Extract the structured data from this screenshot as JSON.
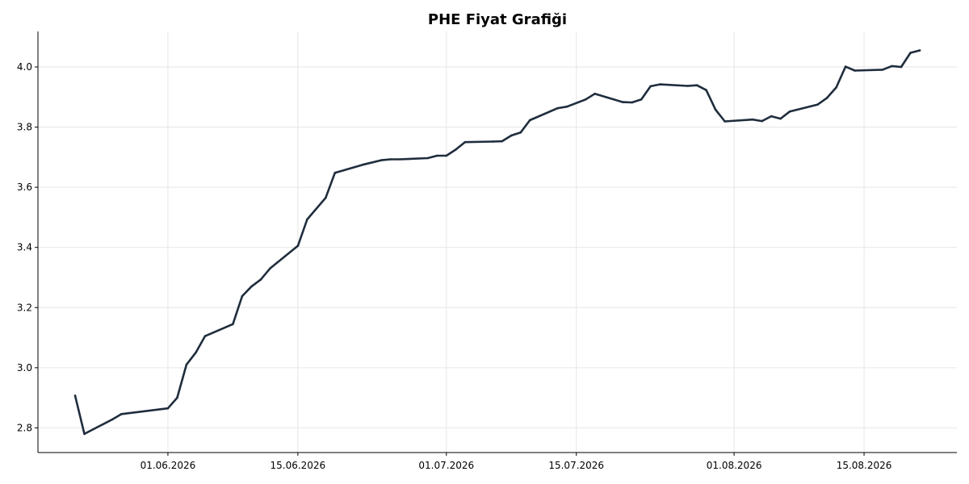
{
  "chart_data": {
    "type": "line",
    "title": "PHE Fiyat Grafiği",
    "xlabel": "",
    "ylabel": "",
    "x_ticks": [
      {
        "date": "2026-06-01",
        "label": "01.06.2026"
      },
      {
        "date": "2026-06-15",
        "label": "15.06.2026"
      },
      {
        "date": "2026-07-01",
        "label": "01.07.2026"
      },
      {
        "date": "2026-07-15",
        "label": "15.07.2026"
      },
      {
        "date": "2026-08-01",
        "label": "01.08.2026"
      },
      {
        "date": "2026-08-15",
        "label": "15.08.2026"
      }
    ],
    "y_ticks": [
      {
        "value": 2.8,
        "label": "2.8"
      },
      {
        "value": 3.0,
        "label": "3.0"
      },
      {
        "value": 3.2,
        "label": "3.2"
      },
      {
        "value": 3.4,
        "label": "3.4"
      },
      {
        "value": 3.6,
        "label": "3.6"
      },
      {
        "value": 3.8,
        "label": "3.8"
      },
      {
        "value": 4.0,
        "label": "4.0"
      }
    ],
    "xlim": [
      "2026-05-18",
      "2026-08-25"
    ],
    "ylim": [
      2.718,
      4.118
    ],
    "grid": true,
    "legend": "none",
    "color": "#1f2d3d",
    "series": [
      {
        "x": [
          "2026-05-22",
          "2026-05-23",
          "2026-05-26",
          "2026-05-27",
          "2026-06-01",
          "2026-06-02",
          "2026-06-03",
          "2026-06-04",
          "2026-06-05",
          "2026-06-08",
          "2026-06-09",
          "2026-06-10",
          "2026-06-11",
          "2026-06-12",
          "2026-06-15",
          "2026-06-16",
          "2026-06-18",
          "2026-06-19",
          "2026-06-22",
          "2026-06-24",
          "2026-06-25",
          "2026-06-26",
          "2026-06-29",
          "2026-06-30",
          "2026-07-01",
          "2026-07-02",
          "2026-07-03",
          "2026-07-06",
          "2026-07-07",
          "2026-07-08",
          "2026-07-09",
          "2026-07-10",
          "2026-07-13",
          "2026-07-14",
          "2026-07-16",
          "2026-07-17",
          "2026-07-20",
          "2026-07-21",
          "2026-07-22",
          "2026-07-23",
          "2026-07-24",
          "2026-07-27",
          "2026-07-28",
          "2026-07-29",
          "2026-07-30",
          "2026-07-31",
          "2026-08-03",
          "2026-08-04",
          "2026-08-05",
          "2026-08-06",
          "2026-08-07",
          "2026-08-10",
          "2026-08-11",
          "2026-08-12",
          "2026-08-13",
          "2026-08-14",
          "2026-08-17",
          "2026-08-18",
          "2026-08-19",
          "2026-08-20",
          "2026-08-21"
        ],
        "values": [
          2.907,
          2.78,
          2.828,
          2.846,
          2.865,
          2.9,
          3.01,
          3.05,
          3.105,
          3.145,
          3.238,
          3.27,
          3.293,
          3.33,
          3.405,
          3.493,
          3.565,
          3.648,
          3.675,
          3.69,
          3.693,
          3.693,
          3.697,
          3.705,
          3.705,
          3.725,
          3.75,
          3.752,
          3.753,
          3.772,
          3.782,
          3.823,
          3.863,
          3.868,
          3.892,
          3.911,
          3.883,
          3.882,
          3.892,
          3.936,
          3.942,
          3.937,
          3.939,
          3.923,
          3.858,
          3.819,
          3.825,
          3.82,
          3.836,
          3.828,
          3.852,
          3.875,
          3.897,
          3.932,
          4.001,
          3.988,
          3.991,
          4.003,
          4.0,
          4.047,
          4.055
        ]
      }
    ]
  }
}
